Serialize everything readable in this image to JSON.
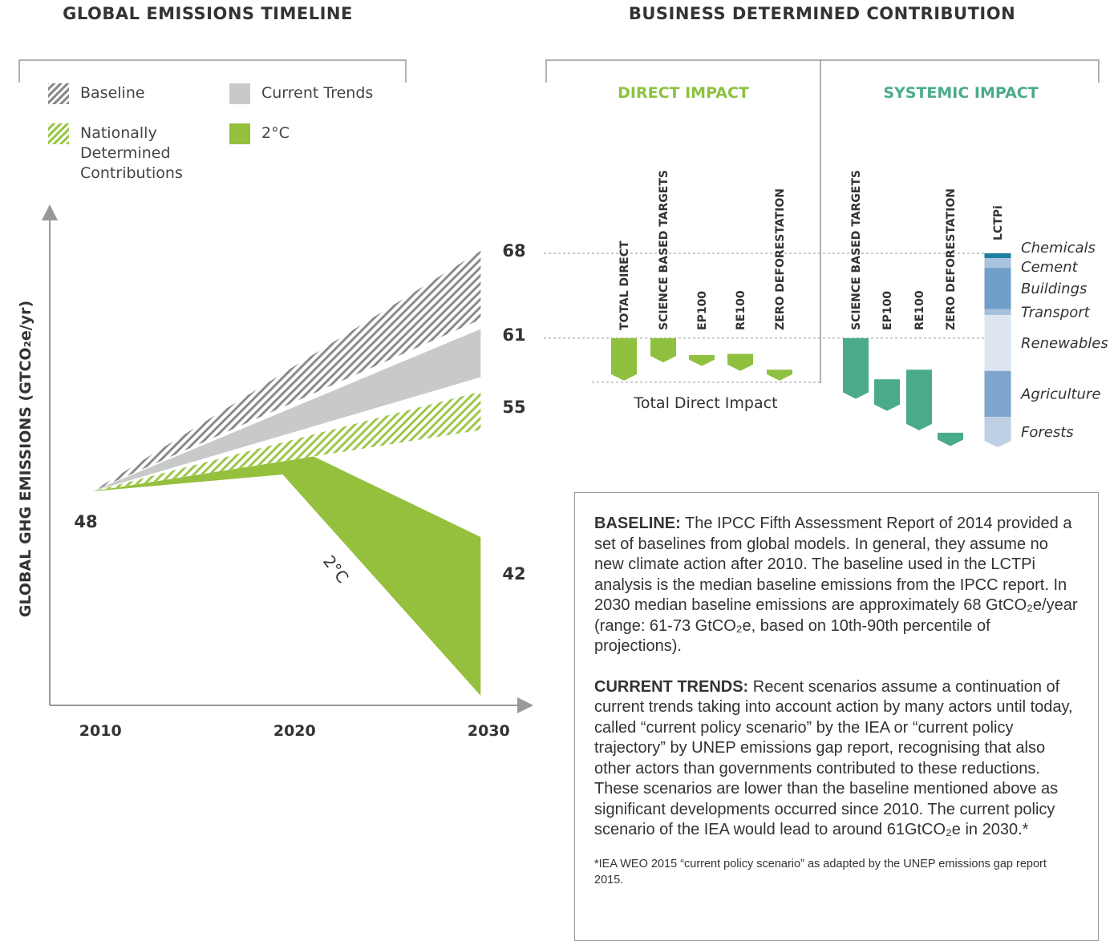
{
  "chart_data": [
    {
      "type": "band-area",
      "title": "GLOBAL EMISSIONS TIMELINE",
      "y_label": "GLOBAL GHG EMISSIONS (GTCO₂e/yr)",
      "xlim": [
        2007.8,
        2032.3
      ],
      "ylim": [
        30.2,
        71.2
      ],
      "xticks": [
        2010,
        2020,
        2030
      ],
      "series": [
        {
          "name": "Baseline",
          "color": "#8a8a8a",
          "hatch": true,
          "x": [
            2010,
            2030
          ],
          "values": [
            48,
            68
          ],
          "lower_x": [
            2010,
            2030
          ],
          "lower": [
            48,
            62.3
          ]
        },
        {
          "name": "Current Trends",
          "color": "#c8c9cb",
          "hatch": false,
          "x": [
            2010,
            2030
          ],
          "values": [
            48,
            61.5
          ],
          "lower_x": [
            2010,
            2030
          ],
          "lower": [
            48,
            57.5
          ]
        },
        {
          "name": "Nationally Determined Contributions",
          "color": "#9cc748",
          "hatch": true,
          "x": [
            2010,
            2030
          ],
          "values": [
            48,
            56.3
          ],
          "lower_x": [
            2010,
            2030
          ],
          "lower": [
            48,
            53.1
          ]
        },
        {
          "name": "2°C",
          "color": "#95c03e",
          "hatch": false,
          "x": [
            2010,
            2021.4,
            2030
          ],
          "values": [
            48,
            50.9,
            44.2
          ],
          "lower_x": [
            2010,
            2019.8,
            2030
          ],
          "lower": [
            48,
            49.4,
            31
          ]
        }
      ],
      "start_label": 48,
      "end_labels": [
        68,
        61,
        55,
        42
      ],
      "annotation": "2°C"
    },
    {
      "type": "waterfall",
      "title": "BUSINESS DETERMINED CONTRIBUTION",
      "ylim": [
        52,
        68
      ],
      "reference_lines": [
        68,
        61
      ],
      "groups": [
        {
          "title": "DIRECT IMPACT",
          "color": "#8fc040",
          "title_color": "#8dc13f",
          "categories": [
            "TOTAL DIRECT",
            "SCIENCE BASED TARGETS",
            "EP100",
            "RE100",
            "ZERO DEFORESTATION"
          ],
          "start": [
            61,
            61,
            59.6,
            59.7,
            58.4
          ],
          "values": [
            -3.5,
            -2.0,
            -0.9,
            -1.4,
            -0.9
          ],
          "total_label": "Total Direct Impact"
        },
        {
          "title": "SYSTEMIC IMPACT",
          "color": "#4aab8c",
          "title_color": "#4aab8c",
          "categories": [
            "SCIENCE BASED TARGETS",
            "EP100",
            "RE100",
            "ZERO DEFORESTATION"
          ],
          "start": [
            61,
            57.6,
            58.4,
            53.2
          ],
          "values": [
            -5.0,
            -2.6,
            -5.0,
            -1.1
          ]
        }
      ],
      "stack": {
        "name": "LCTPi",
        "start": 68,
        "series": [
          {
            "name": "Chemicals",
            "color": "#1f7fa0",
            "values": [
              0.4
            ]
          },
          {
            "name": "Cement",
            "color": "#a9c2dd",
            "values": [
              0.8
            ]
          },
          {
            "name": "Buildings",
            "color": "#6f9ec8",
            "values": [
              3.4
            ]
          },
          {
            "name": "Transport",
            "color": "#a6c0dc",
            "values": [
              0.5
            ]
          },
          {
            "name": "Renewables",
            "color": "#dde5f0",
            "values": [
              4.6
            ]
          },
          {
            "name": "Agriculture",
            "color": "#7ea6cc",
            "values": [
              3.8
            ]
          },
          {
            "name": "Forests",
            "color": "#bdd0e4",
            "values": [
              2.5
            ]
          }
        ]
      }
    }
  ],
  "text_box": {
    "paragraphs": [
      {
        "heading": "BASELINE:",
        "text": " The IPCC Fifth Assessment Report of 2014 provided a set of baselines from global models. In general, they assume no new climate action after 2010. The baseline used in the LCTPi analysis is the median baseline emissions from the IPCC report. In 2030 median baseline emissions are approximately 68 GtCO₂e/year (range: 61-73 GtCO₂e, based on 10th-90th percentile of projections)."
      },
      {
        "heading": "CURRENT TRENDS:",
        "text": " Recent scenarios assume a continuation of current trends taking into account action by many actors until today, called “current policy scenario” by the IEA or “current policy trajectory” by UNEP emissions gap report, recognising that also other actors than governments contributed to these reductions. These scenarios are lower than the baseline mentioned above as significant developments occurred since 2010. The current policy scenario of the IEA would lead to around 61GtCO₂e in 2030.*"
      }
    ],
    "footnote": "*IEA WEO 2015 “current policy scenario” as adapted by the UNEP emissions gap report 2015."
  }
}
